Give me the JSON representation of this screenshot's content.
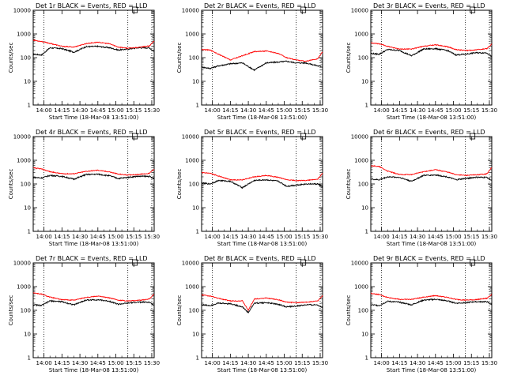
{
  "chart_data": {
    "type": "line",
    "layout": "3x3 grid",
    "xlabel": "Start Time (18-Mar-08 13:51:00)",
    "ylabel": "Counts/sec",
    "yscale": "log",
    "ylim": [
      1,
      10000
    ],
    "ytick_labels": [
      "1",
      "10",
      "100",
      "1000",
      "10000"
    ],
    "xlim_minutes_after_1400": [
      -9,
      92
    ],
    "xtick_labels": [
      "14:00",
      "14:15",
      "14:30",
      "14:45",
      "15:00",
      "15:15",
      "15:30"
    ],
    "vertical_dotted_lines_minutes_after_1400": [
      0,
      70,
      90
    ],
    "legend": {
      "black": "Events",
      "red": "LLD"
    },
    "panels": [
      {
        "title": "Det 1r BLACK = Events, RED = LLD",
        "t": [
          -9,
          -2,
          5,
          15,
          25,
          35,
          45,
          55,
          62,
          70,
          78,
          88,
          92
        ],
        "black": [
          140,
          130,
          260,
          240,
          170,
          290,
          300,
          260,
          210,
          230,
          260,
          260,
          180
        ],
        "red": [
          550,
          480,
          400,
          300,
          280,
          390,
          450,
          380,
          280,
          250,
          270,
          310,
          500
        ]
      },
      {
        "title": "Det 2r BLACK = Events, RED = LLD",
        "t": [
          -9,
          -2,
          5,
          15,
          25,
          35,
          45,
          55,
          62,
          70,
          78,
          88,
          92
        ],
        "black": [
          40,
          35,
          45,
          55,
          60,
          30,
          60,
          65,
          70,
          60,
          60,
          45,
          40
        ],
        "red": [
          220,
          210,
          140,
          80,
          120,
          180,
          190,
          150,
          100,
          80,
          70,
          90,
          180
        ]
      },
      {
        "title": "Det 3r BLACK = Events, RED = LLD",
        "t": [
          -9,
          -2,
          5,
          15,
          25,
          35,
          45,
          55,
          62,
          70,
          78,
          88,
          92
        ],
        "black": [
          150,
          140,
          220,
          200,
          120,
          230,
          240,
          200,
          130,
          140,
          160,
          160,
          110
        ],
        "red": [
          420,
          380,
          300,
          230,
          230,
          300,
          350,
          290,
          220,
          200,
          210,
          240,
          380
        ]
      },
      {
        "title": "Det 4r BLACK = Events, RED = LLD",
        "t": [
          -9,
          -2,
          5,
          15,
          25,
          35,
          45,
          55,
          62,
          70,
          78,
          88,
          92
        ],
        "black": [
          190,
          180,
          230,
          210,
          160,
          250,
          260,
          220,
          170,
          190,
          210,
          210,
          160
        ],
        "red": [
          480,
          430,
          330,
          270,
          270,
          340,
          380,
          320,
          260,
          240,
          250,
          280,
          430
        ]
      },
      {
        "title": "Det 5r BLACK = Events, RED = LLD",
        "t": [
          -9,
          -2,
          5,
          15,
          25,
          35,
          45,
          55,
          62,
          70,
          78,
          88,
          92
        ],
        "black": [
          110,
          100,
          140,
          130,
          70,
          140,
          150,
          130,
          80,
          90,
          100,
          100,
          75
        ],
        "red": [
          300,
          280,
          220,
          150,
          150,
          200,
          230,
          190,
          150,
          140,
          140,
          160,
          280
        ]
      },
      {
        "title": "Det 6r BLACK = Events, RED = LLD",
        "t": [
          -9,
          -2,
          5,
          15,
          25,
          35,
          45,
          55,
          62,
          70,
          78,
          88,
          92
        ],
        "black": [
          160,
          150,
          200,
          190,
          130,
          230,
          240,
          200,
          150,
          170,
          190,
          190,
          140
        ],
        "red": [
          600,
          540,
          350,
          250,
          250,
          330,
          400,
          320,
          250,
          230,
          240,
          270,
          500
        ]
      },
      {
        "title": "Det 7r BLACK = Events, RED = LLD",
        "t": [
          -9,
          -2,
          5,
          15,
          25,
          35,
          45,
          55,
          62,
          70,
          78,
          88,
          92
        ],
        "black": [
          170,
          160,
          250,
          230,
          170,
          270,
          280,
          240,
          180,
          200,
          220,
          220,
          160
        ],
        "red": [
          550,
          480,
          360,
          280,
          270,
          350,
          400,
          330,
          270,
          250,
          260,
          300,
          480
        ]
      },
      {
        "title": "Det 8r BLACK = Events, RED = LLD",
        "t": [
          -9,
          -2,
          5,
          15,
          25,
          30,
          35,
          45,
          55,
          62,
          70,
          78,
          88,
          92
        ],
        "black": [
          170,
          160,
          200,
          190,
          140,
          80,
          200,
          210,
          180,
          140,
          150,
          170,
          170,
          130
        ],
        "red": [
          450,
          400,
          320,
          250,
          250,
          100,
          300,
          330,
          280,
          220,
          210,
          220,
          250,
          420
        ]
      },
      {
        "title": "Det 9r BLACK = Events, RED = LLD",
        "t": [
          -9,
          -2,
          5,
          15,
          25,
          35,
          45,
          55,
          62,
          70,
          78,
          88,
          92
        ],
        "black": [
          170,
          160,
          240,
          220,
          170,
          270,
          290,
          250,
          200,
          210,
          230,
          230,
          170
        ],
        "red": [
          520,
          460,
          350,
          290,
          290,
          360,
          420,
          350,
          290,
          270,
          280,
          320,
          480
        ]
      }
    ]
  }
}
